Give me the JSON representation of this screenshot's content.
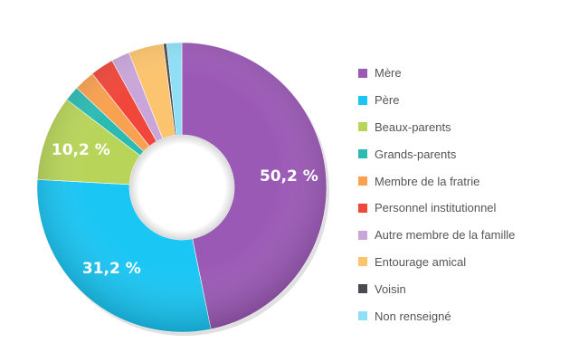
{
  "chart_data": {
    "type": "pie",
    "subtype": "donut",
    "title": "",
    "unit": "%",
    "categories": [
      "Mère",
      "Père",
      "Beaux-parents",
      "Grands-parents",
      "Membre de la fratrie",
      "Personnel institutionnel",
      "Autre membre de la famille",
      "Entourage amical",
      "Voisin",
      "Non renseigné"
    ],
    "values": [
      50.2,
      31.2,
      10.2,
      1.8,
      2.5,
      2.8,
      2.2,
      4.2,
      0.4,
      1.8
    ],
    "colors": [
      "#9B59B6",
      "#1AC6F4",
      "#B8D55A",
      "#2BBBB3",
      "#F8A150",
      "#F0473A",
      "#C9A6DA",
      "#FCC46E",
      "#4A4A52",
      "#8FDFF7"
    ],
    "data_labels": [
      {
        "index": 0,
        "text": "50,2 %"
      },
      {
        "index": 1,
        "text": "31,2 %"
      },
      {
        "index": 2,
        "text": "10,2 %"
      }
    ],
    "legend_position": "right"
  }
}
